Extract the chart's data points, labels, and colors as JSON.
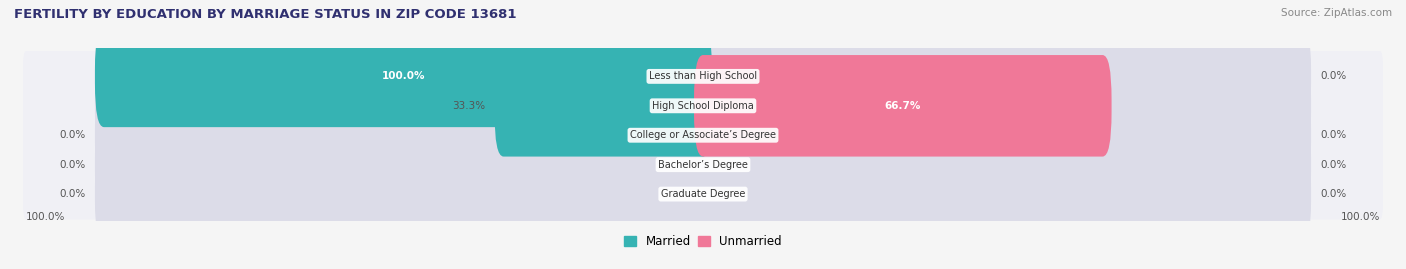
{
  "title": "FERTILITY BY EDUCATION BY MARRIAGE STATUS IN ZIP CODE 13681",
  "source": "Source: ZipAtlas.com",
  "categories": [
    "Less than High School",
    "High School Diploma",
    "College or Associate’s Degree",
    "Bachelor’s Degree",
    "Graduate Degree"
  ],
  "married_values": [
    100.0,
    33.3,
    0.0,
    0.0,
    0.0
  ],
  "unmarried_values": [
    0.0,
    66.7,
    0.0,
    0.0,
    0.0
  ],
  "married_color": "#36b3b3",
  "unmarried_color": "#f07898",
  "bar_bg_color": "#dcdce8",
  "row_bg_color": "#f0f0f5",
  "background_color": "#f5f5f5",
  "title_color": "#303070",
  "label_color": "#555555",
  "figsize": [
    14.06,
    2.69
  ],
  "dpi": 100
}
